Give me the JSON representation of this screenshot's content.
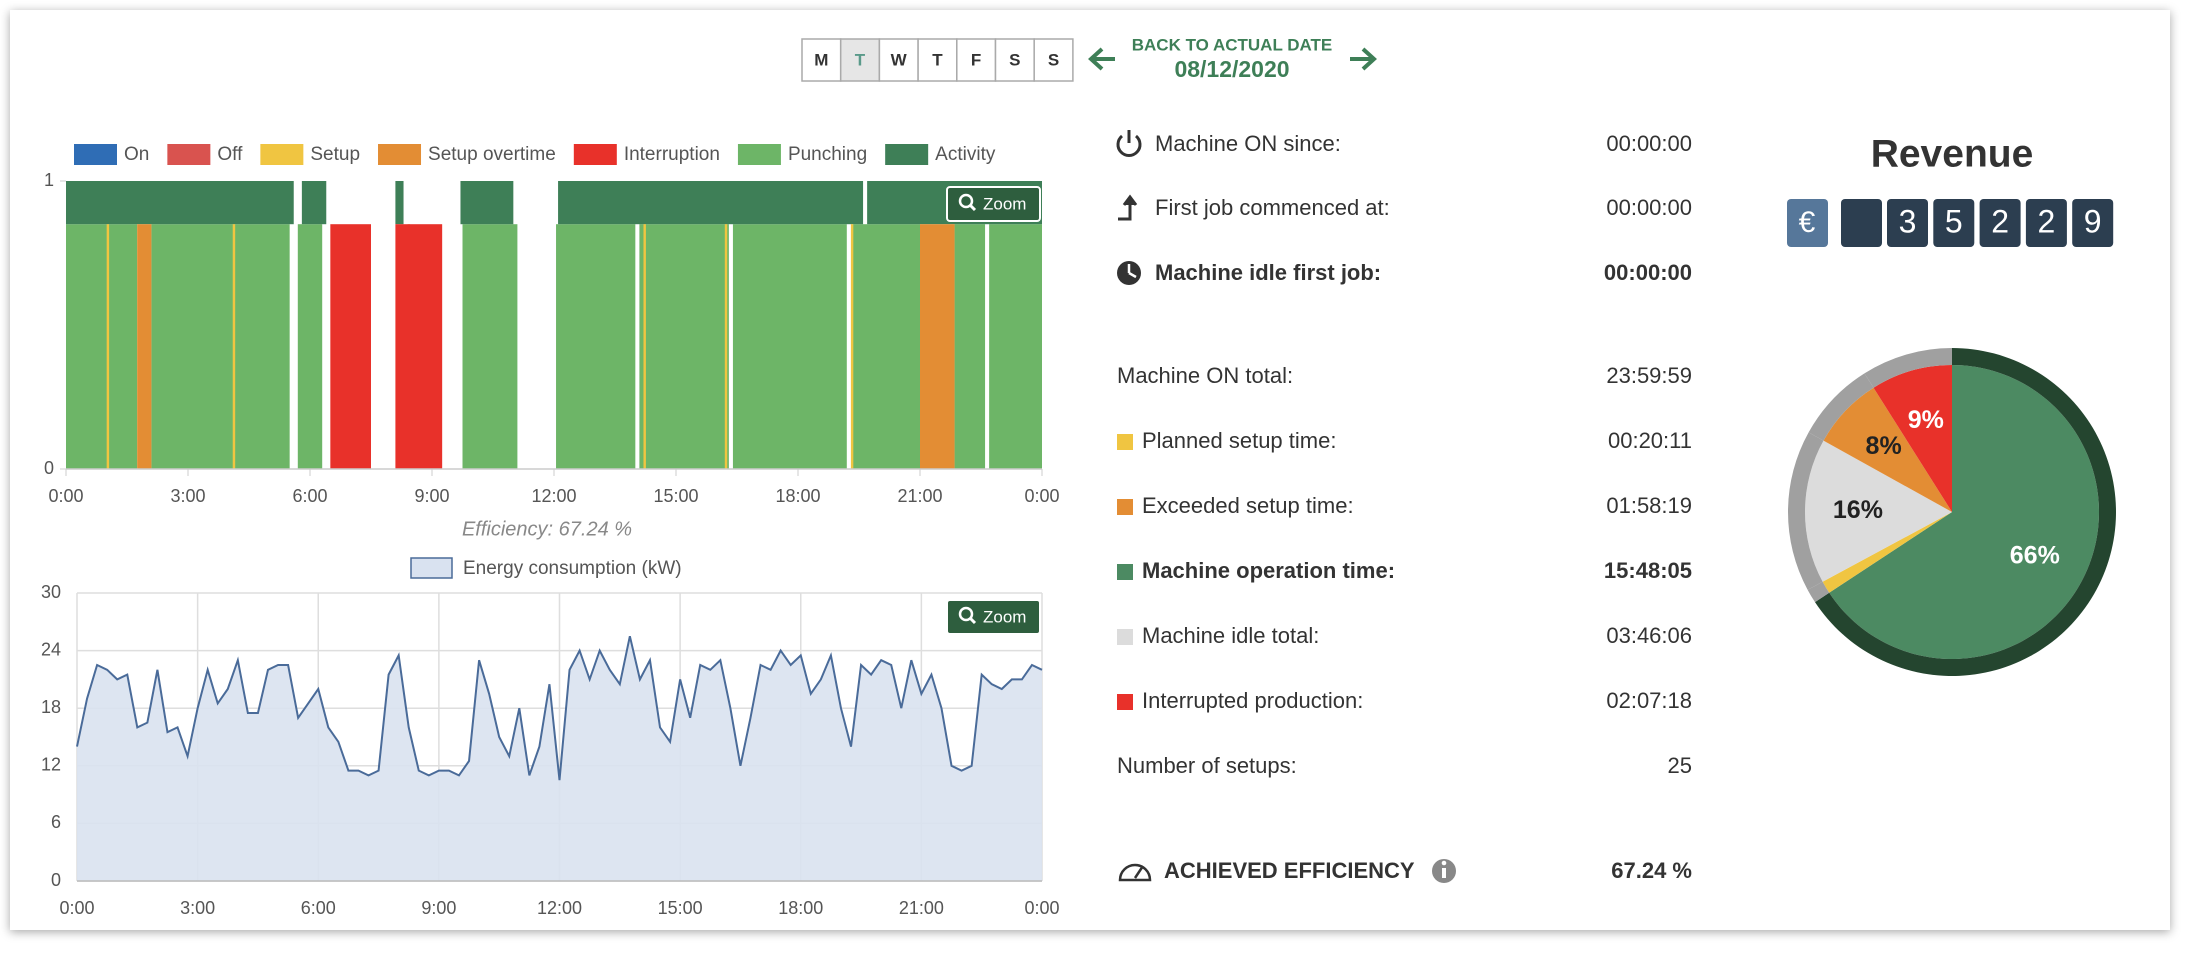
{
  "week_days": [
    "M",
    "T",
    "W",
    "T",
    "F",
    "S",
    "S"
  ],
  "nav": {
    "back_label": "BACK TO ACTUAL DATE",
    "date": "08/12/2020"
  },
  "zoom_label": "Zoom",
  "chart_data": [
    {
      "type": "timeline",
      "annotation": "Efficiency: 67.24 %",
      "xlim": [
        0,
        24
      ],
      "xticks": [
        {
          "value": 0,
          "label": "0:00"
        },
        {
          "value": 3,
          "label": "3:00"
        },
        {
          "value": 6,
          "label": "6:00"
        },
        {
          "value": 9,
          "label": "9:00"
        },
        {
          "value": 12,
          "label": "12:00"
        },
        {
          "value": 15,
          "label": "15:00"
        },
        {
          "value": 18,
          "label": "18:00"
        },
        {
          "value": 21,
          "label": "21:00"
        },
        {
          "value": 24,
          "label": "0:00"
        }
      ],
      "ylim": [
        0,
        1
      ],
      "yticks": [
        0,
        1
      ],
      "series": [
        {
          "name": "On",
          "color": "#2f6db5",
          "segments": []
        },
        {
          "name": "Off",
          "color": "#d9534f",
          "segments": []
        },
        {
          "name": "Setup",
          "color": "#f0c541",
          "segments": [
            {
              "start": 1.0,
              "end": 1.06,
              "low": 0,
              "high": 0.85
            },
            {
              "start": 4.1,
              "end": 4.16,
              "low": 0,
              "high": 0.85
            },
            {
              "start": 8.4,
              "end": 8.46,
              "low": 0,
              "high": 0.85
            },
            {
              "start": 14.2,
              "end": 14.26,
              "low": 0,
              "high": 0.85
            },
            {
              "start": 16.2,
              "end": 16.26,
              "low": 0,
              "high": 0.85
            },
            {
              "start": 19.3,
              "end": 19.36,
              "low": 0,
              "high": 0.85
            }
          ]
        },
        {
          "name": "Setup overtime",
          "color": "#e38d34",
          "segments": [
            {
              "start": 1.75,
              "end": 2.1,
              "low": 0,
              "high": 0.85
            },
            {
              "start": 21.0,
              "end": 21.85,
              "low": 0,
              "high": 0.85
            }
          ]
        },
        {
          "name": "Interruption",
          "color": "#e8312a",
          "segments": [
            {
              "start": 6.5,
              "end": 7.5,
              "low": 0,
              "high": 0.85
            },
            {
              "start": 8.1,
              "end": 9.25,
              "low": 0,
              "high": 0.85
            }
          ]
        },
        {
          "name": "Punching",
          "color": "#6db567",
          "segments": [
            {
              "start": 0,
              "end": 1.75,
              "low": 0,
              "high": 0.85
            },
            {
              "start": 2.1,
              "end": 5.5,
              "low": 0,
              "high": 0.85
            },
            {
              "start": 5.7,
              "end": 6.3,
              "low": 0,
              "high": 0.85
            },
            {
              "start": 9.75,
              "end": 11.1,
              "low": 0,
              "high": 0.85
            },
            {
              "start": 12.05,
              "end": 14.0,
              "low": 0,
              "high": 0.85
            },
            {
              "start": 14.1,
              "end": 16.3,
              "low": 0,
              "high": 0.85
            },
            {
              "start": 16.4,
              "end": 19.2,
              "low": 0,
              "high": 0.85
            },
            {
              "start": 19.35,
              "end": 21.0,
              "low": 0,
              "high": 0.85
            },
            {
              "start": 21.85,
              "end": 22.6,
              "low": 0,
              "high": 0.85
            },
            {
              "start": 22.7,
              "end": 24,
              "low": 0,
              "high": 0.85
            }
          ]
        },
        {
          "name": "Activity",
          "color": "#3e7f57",
          "segments": [
            {
              "start": 0,
              "end": 5.6,
              "low": 0.85,
              "high": 1
            },
            {
              "start": 5.8,
              "end": 6.4,
              "low": 0.85,
              "high": 1
            },
            {
              "start": 8.1,
              "end": 8.3,
              "low": 0.85,
              "high": 1
            },
            {
              "start": 9.7,
              "end": 11.0,
              "low": 0.85,
              "high": 1
            },
            {
              "start": 12.1,
              "end": 19.6,
              "low": 0.85,
              "high": 1
            },
            {
              "start": 19.7,
              "end": 24,
              "low": 0.85,
              "high": 1
            }
          ]
        }
      ]
    },
    {
      "type": "line",
      "area": true,
      "grid": true,
      "xlim": [
        0,
        24
      ],
      "xticks": [
        {
          "value": 0,
          "label": "0:00"
        },
        {
          "value": 3,
          "label": "3:00"
        },
        {
          "value": 6,
          "label": "6:00"
        },
        {
          "value": 9,
          "label": "9:00"
        },
        {
          "value": 12,
          "label": "12:00"
        },
        {
          "value": 15,
          "label": "15:00"
        },
        {
          "value": 18,
          "label": "18:00"
        },
        {
          "value": 21,
          "label": "21:00"
        },
        {
          "value": 24,
          "label": "0:00"
        }
      ],
      "ylim": [
        0,
        30
      ],
      "yticks": [
        0,
        6,
        12,
        18,
        24,
        30
      ],
      "x": [
        0,
        0.25,
        0.5,
        0.75,
        1,
        1.25,
        1.5,
        1.75,
        2,
        2.25,
        2.5,
        2.75,
        3,
        3.25,
        3.5,
        3.75,
        4,
        4.25,
        4.5,
        4.75,
        5,
        5.25,
        5.5,
        5.75,
        6,
        6.25,
        6.5,
        6.75,
        7,
        7.25,
        7.5,
        7.75,
        8,
        8.25,
        8.5,
        8.75,
        9,
        9.25,
        9.5,
        9.75,
        10,
        10.25,
        10.5,
        10.75,
        11,
        11.25,
        11.5,
        11.75,
        12,
        12.25,
        12.5,
        12.75,
        13,
        13.25,
        13.5,
        13.75,
        14,
        14.25,
        14.5,
        14.75,
        15,
        15.25,
        15.5,
        15.75,
        16,
        16.25,
        16.5,
        16.75,
        17,
        17.25,
        17.5,
        17.75,
        18,
        18.25,
        18.5,
        18.75,
        19,
        19.25,
        19.5,
        19.75,
        20,
        20.25,
        20.5,
        20.75,
        21,
        21.25,
        21.5,
        21.75,
        22,
        22.25,
        22.5,
        22.75,
        23,
        23.25,
        23.5,
        23.75,
        24
      ],
      "series": [
        {
          "name": "Energy consumption (kW)",
          "color": "#4a6b99",
          "fill": "#d9e2f0",
          "values": [
            14,
            19,
            22.5,
            22,
            21,
            21.5,
            16,
            16.5,
            22,
            15.5,
            16,
            13,
            18,
            22,
            18.5,
            20,
            23,
            17.5,
            17.5,
            22,
            22.5,
            22.5,
            17,
            18.5,
            20,
            16,
            14.5,
            11.5,
            11.5,
            11,
            11.5,
            21.5,
            23.5,
            16,
            11.5,
            11,
            11.5,
            11.5,
            11,
            12.5,
            23,
            19.5,
            15,
            13,
            18,
            11,
            14,
            20.5,
            10.5,
            22,
            24,
            21,
            24,
            22,
            20.5,
            25.5,
            21,
            23,
            16,
            14.5,
            21,
            17,
            22.5,
            22,
            23,
            18,
            12,
            17,
            22.5,
            22,
            24,
            22.5,
            23.5,
            19.5,
            21,
            23.5,
            18,
            14,
            22.5,
            21.5,
            23,
            22.5,
            18,
            23,
            19.5,
            21.5,
            18,
            12,
            11.5,
            12,
            21.5,
            20.5,
            20,
            21,
            21,
            22.5,
            22
          ]
        }
      ]
    },
    {
      "type": "pie",
      "values": [
        66,
        1.4,
        16,
        8,
        9
      ],
      "value_labels": [
        "66%",
        null,
        "16%",
        "8%",
        "9%"
      ],
      "colors": [
        "#4c8a62",
        "#f0c541",
        "#dcdcdc",
        "#e38d34",
        "#e8312a"
      ],
      "ring_colors": [
        "#24452f",
        "#a0a0a0",
        "#a0a0a0",
        "#a0a0a0",
        "#a0a0a0"
      ],
      "label_colors": [
        "#ffffff",
        "#222222",
        "#222222",
        "#222222",
        "#ffffff"
      ]
    }
  ],
  "stats": [
    {
      "label": "Machine ON since:",
      "value": "00:00:00"
    },
    {
      "label": "First job commenced at:",
      "value": "00:00:00"
    },
    {
      "label": "Machine idle first job:",
      "value": "00:00:00"
    },
    {
      "label": "Machine ON total:",
      "value": "23:59:59"
    },
    {
      "label": "Planned setup time:",
      "value": "00:20:11"
    },
    {
      "label": "Exceeded setup time:",
      "value": "01:58:19"
    },
    {
      "label": "Machine operation time:",
      "value": "15:48:05"
    },
    {
      "label": "Machine idle total:",
      "value": "03:46:06"
    },
    {
      "label": "Interrupted production:",
      "value": "02:07:18"
    },
    {
      "label": "Number of setups:",
      "value": "25"
    },
    {
      "label": "ACHIEVED EFFICIENCY",
      "value": "67.24 %"
    }
  ],
  "revenue": {
    "title": "Revenue",
    "currency": "€",
    "digits": [
      "3",
      "5",
      "2",
      "2",
      "9"
    ]
  }
}
